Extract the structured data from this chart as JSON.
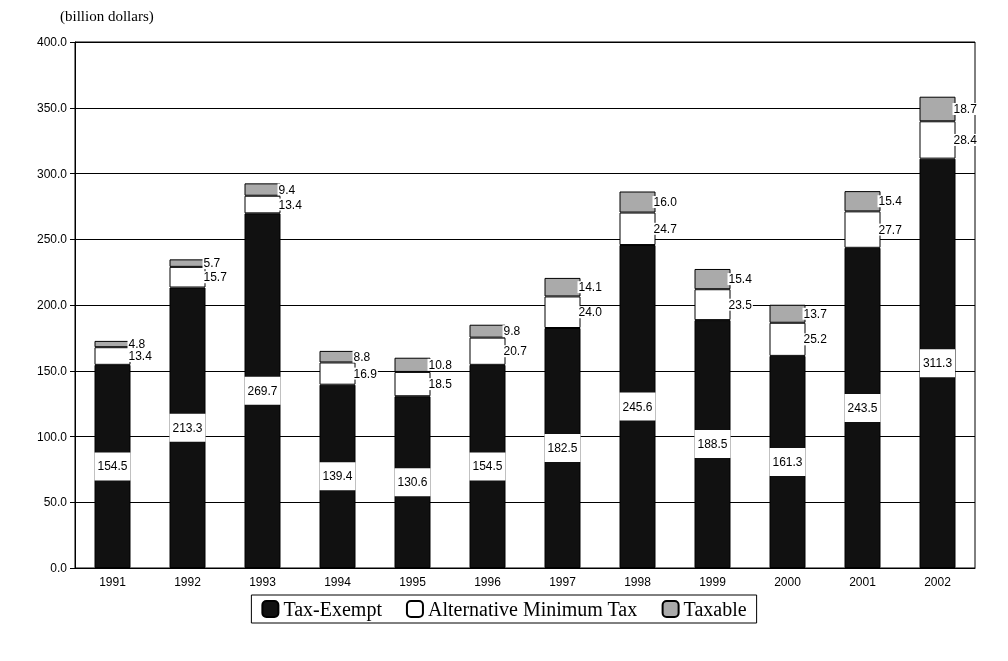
{
  "chart_data": {
    "type": "bar",
    "stacked": true,
    "ylabel": "(billion dollars)",
    "categories": [
      "1991",
      "1992",
      "1993",
      "1994",
      "1995",
      "1996",
      "1997",
      "1998",
      "1999",
      "2000",
      "2001",
      "2002"
    ],
    "series": [
      {
        "name": "Tax-Exempt",
        "color": "#111111",
        "values": [
          154.5,
          213.3,
          269.7,
          139.4,
          130.6,
          154.5,
          182.5,
          245.6,
          188.5,
          161.3,
          243.5,
          311.3
        ],
        "value_labels": [
          "154.5",
          "213.3",
          "269.7",
          "139.4",
          "130.6",
          "154.5",
          "182.5",
          "245.6",
          "188.5",
          "161.3",
          "243.5",
          "311.3"
        ]
      },
      {
        "name": "Alternative Minimum Tax",
        "color": "#ffffff",
        "values": [
          13.4,
          15.7,
          13.4,
          16.9,
          18.5,
          20.7,
          24.0,
          24.7,
          23.5,
          25.2,
          27.7,
          28.4
        ],
        "value_labels": [
          "13.4",
          "15.7",
          "13.4",
          "16.9",
          "18.5",
          "20.7",
          "24.0",
          "24.7",
          "23.5",
          "25.2",
          "27.7",
          "28.4"
        ]
      },
      {
        "name": "Taxable",
        "color": "#aaaaaa",
        "values": [
          4.8,
          5.7,
          9.4,
          8.8,
          10.8,
          9.8,
          14.1,
          16.0,
          15.4,
          13.7,
          15.4,
          18.7
        ],
        "value_labels": [
          "4.8",
          "5.7",
          "9.4",
          "8.8",
          "10.8",
          "9.8",
          "14.1",
          "16.0",
          "15.4",
          "13.7",
          "15.4",
          "18.7"
        ]
      }
    ],
    "ylim": [
      0,
      400
    ],
    "yticks": [
      {
        "value": 0,
        "label": "0.0"
      },
      {
        "value": 50,
        "label": "50.0"
      },
      {
        "value": 100,
        "label": "100.0"
      },
      {
        "value": 150,
        "label": "150.0"
      },
      {
        "value": 200,
        "label": "200.0"
      },
      {
        "value": 250,
        "label": "250.0"
      },
      {
        "value": 300,
        "label": "300.0"
      },
      {
        "value": 350,
        "label": "350.0"
      },
      {
        "value": 400,
        "label": "400.0"
      }
    ],
    "grid": "y",
    "legend": "bottom"
  }
}
